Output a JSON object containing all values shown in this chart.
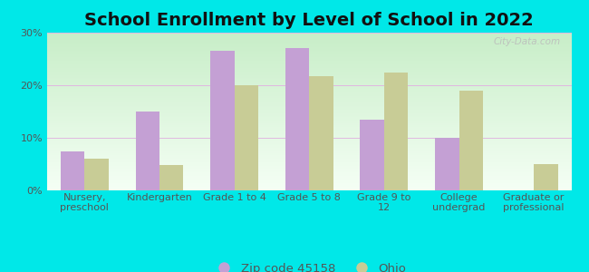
{
  "title": "School Enrollment by Level of School in 2022",
  "categories": [
    "Nursery,\npreschool",
    "Kindergarten",
    "Grade 1 to 4",
    "Grade 5 to 8",
    "Grade 9 to\n12",
    "College\nundergrad",
    "Graduate or\nprofessional"
  ],
  "zip_values": [
    7.5,
    15.0,
    26.5,
    27.0,
    13.5,
    10.0,
    0.0
  ],
  "ohio_values": [
    6.0,
    4.8,
    20.0,
    21.8,
    22.5,
    19.0,
    5.0
  ],
  "zip_color": "#c4a0d4",
  "ohio_color": "#c8cc96",
  "background_color": "#00e8e8",
  "grad_top_left": "#c8eec8",
  "grad_bottom_right": "#f8fff8",
  "ylim": [
    0,
    30
  ],
  "yticks": [
    0,
    10,
    20,
    30
  ],
  "zip_label": "Zip code 45158",
  "ohio_label": "Ohio",
  "watermark": "City-Data.com",
  "title_fontsize": 14,
  "tick_fontsize": 8,
  "legend_fontsize": 9.5,
  "bar_width": 0.32,
  "grid_color": "#e0b8e0",
  "grid_linewidth": 0.7
}
